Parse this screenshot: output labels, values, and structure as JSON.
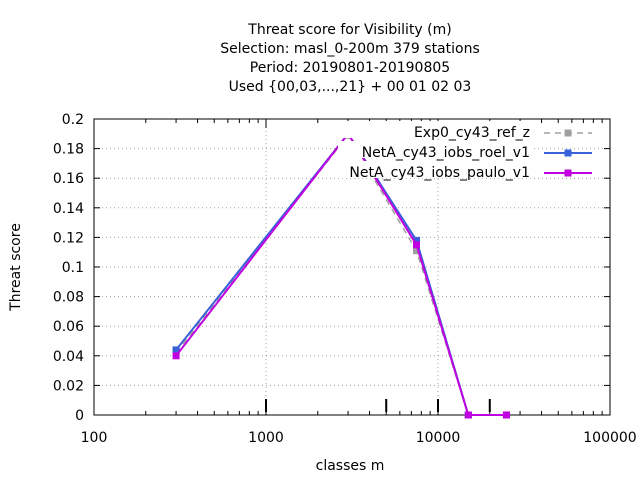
{
  "chart_data": {
    "type": "line",
    "title_lines": [
      "Threat score  for Visibility (m)",
      "Selection: masl_0-200m    379 stations",
      "Period: 20190801-20190805",
      "Used {00,03,...,21} + 00 01 02 03"
    ],
    "xlabel": "classes m",
    "ylabel": "Threat score",
    "x_scale": "log",
    "xlim": [
      100,
      100000
    ],
    "ylim": [
      0,
      0.2
    ],
    "x_ticks": [
      100,
      1000,
      10000,
      100000
    ],
    "x_tick_labels": [
      "100",
      "1000",
      "10000",
      "100000"
    ],
    "y_ticks": [
      0,
      0.02,
      0.04,
      0.06,
      0.08,
      0.1,
      0.12,
      0.14,
      0.16,
      0.18,
      0.2
    ],
    "y_tick_labels": [
      "0",
      "0.02",
      "0.04",
      "0.06",
      "0.08",
      "0.1",
      "0.12",
      "0.14",
      "0.16",
      "0.18",
      "0.2"
    ],
    "grid": true,
    "legend_position": "top-right",
    "class_markers_x": [
      1000,
      5000,
      10000,
      20000
    ],
    "series": [
      {
        "name": "Exp0_cy43_ref_z",
        "color": "#a0a0a0",
        "dash": true,
        "x": [
          300,
          3000,
          7500,
          15000,
          25000
        ],
        "y": [
          0.042,
          0.189,
          0.111,
          0.0,
          0.0
        ]
      },
      {
        "name": "NetA_cy43_iobs_roel_v1",
        "color": "#3a62d8",
        "dash": false,
        "x": [
          300,
          3000,
          7500,
          15000,
          25000
        ],
        "y": [
          0.044,
          0.19,
          0.118,
          0.0,
          0.0
        ]
      },
      {
        "name": "NetA_cy43_iobs_paulo_v1",
        "color": "#c000e0",
        "dash": false,
        "x": [
          300,
          3000,
          7500,
          15000,
          25000
        ],
        "y": [
          0.04,
          0.19,
          0.115,
          0.0,
          0.0
        ]
      }
    ]
  }
}
